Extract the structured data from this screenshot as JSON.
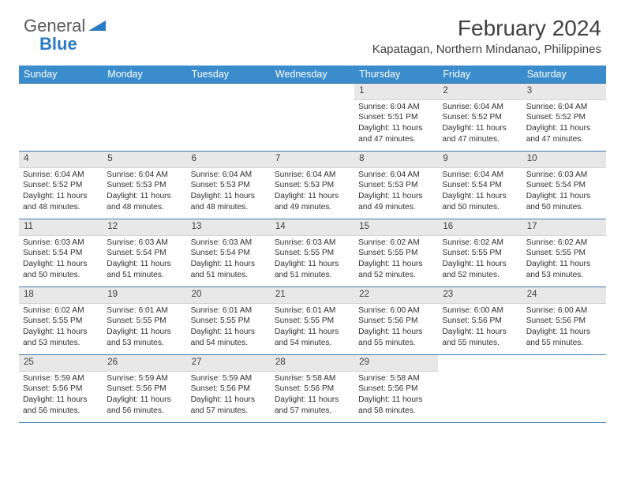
{
  "logo": {
    "text1": "General",
    "text2": "Blue"
  },
  "title": "February 2024",
  "location": "Kapatagan, Northern Mindanao, Philippines",
  "colors": {
    "header_bg": "#3a8ccc",
    "header_border": "#2a6aa0",
    "row_border": "#3a7ab0",
    "daynum_bg": "#e8e8e8",
    "text": "#303030",
    "logo_gray": "#5a5a5a",
    "logo_blue": "#2b7cc4"
  },
  "weekdays": [
    "Sunday",
    "Monday",
    "Tuesday",
    "Wednesday",
    "Thursday",
    "Friday",
    "Saturday"
  ],
  "weeks": [
    [
      null,
      null,
      null,
      null,
      {
        "n": "1",
        "sr": "6:04 AM",
        "ss": "5:51 PM",
        "dl": "11 hours and 47 minutes."
      },
      {
        "n": "2",
        "sr": "6:04 AM",
        "ss": "5:52 PM",
        "dl": "11 hours and 47 minutes."
      },
      {
        "n": "3",
        "sr": "6:04 AM",
        "ss": "5:52 PM",
        "dl": "11 hours and 47 minutes."
      }
    ],
    [
      {
        "n": "4",
        "sr": "6:04 AM",
        "ss": "5:52 PM",
        "dl": "11 hours and 48 minutes."
      },
      {
        "n": "5",
        "sr": "6:04 AM",
        "ss": "5:53 PM",
        "dl": "11 hours and 48 minutes."
      },
      {
        "n": "6",
        "sr": "6:04 AM",
        "ss": "5:53 PM",
        "dl": "11 hours and 48 minutes."
      },
      {
        "n": "7",
        "sr": "6:04 AM",
        "ss": "5:53 PM",
        "dl": "11 hours and 49 minutes."
      },
      {
        "n": "8",
        "sr": "6:04 AM",
        "ss": "5:53 PM",
        "dl": "11 hours and 49 minutes."
      },
      {
        "n": "9",
        "sr": "6:04 AM",
        "ss": "5:54 PM",
        "dl": "11 hours and 50 minutes."
      },
      {
        "n": "10",
        "sr": "6:03 AM",
        "ss": "5:54 PM",
        "dl": "11 hours and 50 minutes."
      }
    ],
    [
      {
        "n": "11",
        "sr": "6:03 AM",
        "ss": "5:54 PM",
        "dl": "11 hours and 50 minutes."
      },
      {
        "n": "12",
        "sr": "6:03 AM",
        "ss": "5:54 PM",
        "dl": "11 hours and 51 minutes."
      },
      {
        "n": "13",
        "sr": "6:03 AM",
        "ss": "5:54 PM",
        "dl": "11 hours and 51 minutes."
      },
      {
        "n": "14",
        "sr": "6:03 AM",
        "ss": "5:55 PM",
        "dl": "11 hours and 51 minutes."
      },
      {
        "n": "15",
        "sr": "6:02 AM",
        "ss": "5:55 PM",
        "dl": "11 hours and 52 minutes."
      },
      {
        "n": "16",
        "sr": "6:02 AM",
        "ss": "5:55 PM",
        "dl": "11 hours and 52 minutes."
      },
      {
        "n": "17",
        "sr": "6:02 AM",
        "ss": "5:55 PM",
        "dl": "11 hours and 53 minutes."
      }
    ],
    [
      {
        "n": "18",
        "sr": "6:02 AM",
        "ss": "5:55 PM",
        "dl": "11 hours and 53 minutes."
      },
      {
        "n": "19",
        "sr": "6:01 AM",
        "ss": "5:55 PM",
        "dl": "11 hours and 53 minutes."
      },
      {
        "n": "20",
        "sr": "6:01 AM",
        "ss": "5:55 PM",
        "dl": "11 hours and 54 minutes."
      },
      {
        "n": "21",
        "sr": "6:01 AM",
        "ss": "5:55 PM",
        "dl": "11 hours and 54 minutes."
      },
      {
        "n": "22",
        "sr": "6:00 AM",
        "ss": "5:56 PM",
        "dl": "11 hours and 55 minutes."
      },
      {
        "n": "23",
        "sr": "6:00 AM",
        "ss": "5:56 PM",
        "dl": "11 hours and 55 minutes."
      },
      {
        "n": "24",
        "sr": "6:00 AM",
        "ss": "5:56 PM",
        "dl": "11 hours and 55 minutes."
      }
    ],
    [
      {
        "n": "25",
        "sr": "5:59 AM",
        "ss": "5:56 PM",
        "dl": "11 hours and 56 minutes."
      },
      {
        "n": "26",
        "sr": "5:59 AM",
        "ss": "5:56 PM",
        "dl": "11 hours and 56 minutes."
      },
      {
        "n": "27",
        "sr": "5:59 AM",
        "ss": "5:56 PM",
        "dl": "11 hours and 57 minutes."
      },
      {
        "n": "28",
        "sr": "5:58 AM",
        "ss": "5:56 PM",
        "dl": "11 hours and 57 minutes."
      },
      {
        "n": "29",
        "sr": "5:58 AM",
        "ss": "5:56 PM",
        "dl": "11 hours and 58 minutes."
      },
      null,
      null
    ]
  ],
  "labels": {
    "sunrise": "Sunrise: ",
    "sunset": "Sunset: ",
    "daylight": "Daylight: "
  }
}
